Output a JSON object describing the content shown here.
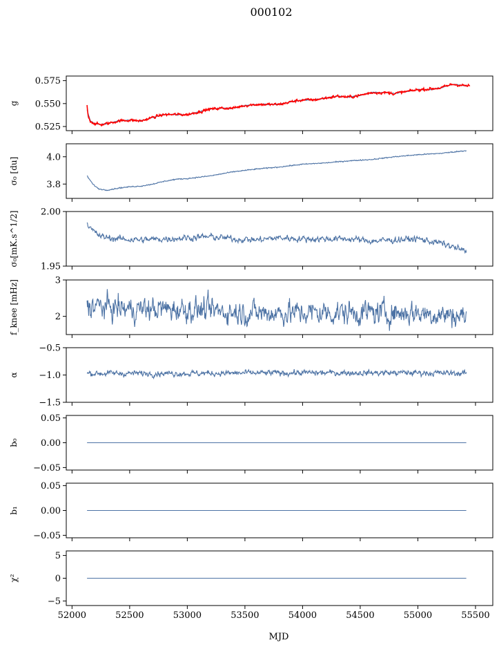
{
  "figure": {
    "title": "000102",
    "xlabel": "MJD",
    "xlim": [
      51950,
      55650
    ],
    "x_ticks": [
      52000,
      52500,
      53000,
      53500,
      54000,
      54500,
      55000,
      55500
    ],
    "colors": {
      "series": "#4c72a4",
      "overlay": "#ff0000",
      "axes": "#000000",
      "background": "#ffffff"
    }
  },
  "chart_data": [
    {
      "type": "line",
      "panel": "g",
      "ylabel": "g",
      "ylim": [
        0.5205,
        0.58
      ],
      "y_ticks": [
        0.525,
        0.55,
        0.575
      ],
      "y_tick_labels": [
        "0.525",
        "0.550",
        "0.575"
      ],
      "x_range": [
        52130,
        55450
      ],
      "series": [
        {
          "color": "#4c72a4",
          "kind": "smooth",
          "noise": 0.0006,
          "x_start": 52130,
          "x_end": 55430,
          "points": [
            [
              52130,
              0.543
            ],
            [
              52160,
              0.531
            ],
            [
              52200,
              0.528
            ],
            [
              52250,
              0.527
            ],
            [
              52300,
              0.528
            ],
            [
              52400,
              0.531
            ],
            [
              52500,
              0.532
            ],
            [
              52600,
              0.531
            ],
            [
              52700,
              0.535
            ],
            [
              52800,
              0.538
            ],
            [
              52900,
              0.538
            ],
            [
              53000,
              0.538
            ],
            [
              53100,
              0.541
            ],
            [
              53200,
              0.544
            ],
            [
              53300,
              0.545
            ],
            [
              53400,
              0.545
            ],
            [
              53500,
              0.548
            ],
            [
              53600,
              0.549
            ],
            [
              53700,
              0.549
            ],
            [
              53800,
              0.549
            ],
            [
              53900,
              0.552
            ],
            [
              54000,
              0.554
            ],
            [
              54100,
              0.554
            ],
            [
              54200,
              0.556
            ],
            [
              54300,
              0.558
            ],
            [
              54400,
              0.557
            ],
            [
              54500,
              0.559
            ],
            [
              54600,
              0.562
            ],
            [
              54700,
              0.562
            ],
            [
              54800,
              0.561
            ],
            [
              54900,
              0.563
            ],
            [
              55000,
              0.565
            ],
            [
              55100,
              0.565
            ],
            [
              55200,
              0.567
            ],
            [
              55300,
              0.571
            ],
            [
              55430,
              0.569
            ]
          ]
        },
        {
          "color": "#ff0000",
          "kind": "noisy",
          "noise": 0.0012,
          "x_start": 52130,
          "x_end": 55450,
          "points": [
            [
              52130,
              0.548
            ],
            [
              52140,
              0.536
            ],
            [
              52160,
              0.531
            ],
            [
              52200,
              0.528
            ],
            [
              52250,
              0.527
            ],
            [
              52300,
              0.528
            ],
            [
              52400,
              0.531
            ],
            [
              52500,
              0.532
            ],
            [
              52600,
              0.531
            ],
            [
              52700,
              0.535
            ],
            [
              52800,
              0.538
            ],
            [
              52900,
              0.538
            ],
            [
              53000,
              0.538
            ],
            [
              53100,
              0.541
            ],
            [
              53200,
              0.544
            ],
            [
              53300,
              0.545
            ],
            [
              53400,
              0.545
            ],
            [
              53500,
              0.548
            ],
            [
              53600,
              0.549
            ],
            [
              53700,
              0.549
            ],
            [
              53800,
              0.549
            ],
            [
              53900,
              0.552
            ],
            [
              54000,
              0.554
            ],
            [
              54100,
              0.554
            ],
            [
              54200,
              0.556
            ],
            [
              54300,
              0.558
            ],
            [
              54400,
              0.557
            ],
            [
              54500,
              0.559
            ],
            [
              54600,
              0.562
            ],
            [
              54700,
              0.562
            ],
            [
              54800,
              0.561
            ],
            [
              54900,
              0.563
            ],
            [
              55000,
              0.565
            ],
            [
              55100,
              0.566
            ],
            [
              55200,
              0.567
            ],
            [
              55300,
              0.571
            ],
            [
              55450,
              0.569
            ]
          ]
        }
      ]
    },
    {
      "type": "line",
      "panel": "sigma0-du",
      "ylabel": "σ₀ [du]",
      "ylim": [
        3.695,
        4.095
      ],
      "y_ticks": [
        3.8,
        4.0
      ],
      "y_tick_labels": [
        "3.8",
        "4.0"
      ],
      "x_range": [
        52130,
        55420
      ],
      "series": [
        {
          "color": "#4c72a4",
          "kind": "smooth",
          "noise": 0.004,
          "x_start": 52130,
          "x_end": 55420,
          "points": [
            [
              52130,
              3.86
            ],
            [
              52180,
              3.8
            ],
            [
              52230,
              3.765
            ],
            [
              52300,
              3.755
            ],
            [
              52400,
              3.77
            ],
            [
              52500,
              3.78
            ],
            [
              52600,
              3.785
            ],
            [
              52700,
              3.8
            ],
            [
              52800,
              3.82
            ],
            [
              52900,
              3.835
            ],
            [
              53000,
              3.84
            ],
            [
              53200,
              3.86
            ],
            [
              53400,
              3.89
            ],
            [
              53600,
              3.91
            ],
            [
              53800,
              3.925
            ],
            [
              54000,
              3.945
            ],
            [
              54200,
              3.955
            ],
            [
              54400,
              3.97
            ],
            [
              54600,
              3.98
            ],
            [
              54800,
              4.0
            ],
            [
              55000,
              4.015
            ],
            [
              55200,
              4.025
            ],
            [
              55420,
              4.045
            ]
          ]
        }
      ]
    },
    {
      "type": "line",
      "panel": "sigma0-mk",
      "ylabel": "σ₀[mK.s^1/2]",
      "ylim": [
        1.95,
        2.0
      ],
      "y_ticks": [
        1.95,
        2.0
      ],
      "y_tick_labels": [
        "1.95",
        "2.00"
      ],
      "x_range": [
        52130,
        55420
      ],
      "series": [
        {
          "color": "#4c72a4",
          "kind": "noisy",
          "noise": 0.0025,
          "x_start": 52130,
          "x_end": 55420,
          "points": [
            [
              52130,
              1.99
            ],
            [
              52170,
              1.983
            ],
            [
              52250,
              1.977
            ],
            [
              52400,
              1.975
            ],
            [
              52600,
              1.974
            ],
            [
              52800,
              1.975
            ],
            [
              53000,
              1.976
            ],
            [
              53200,
              1.977
            ],
            [
              53400,
              1.975
            ],
            [
              53600,
              1.974
            ],
            [
              53800,
              1.976
            ],
            [
              54000,
              1.975
            ],
            [
              54200,
              1.975
            ],
            [
              54400,
              1.975
            ],
            [
              54600,
              1.973
            ],
            [
              54800,
              1.974
            ],
            [
              55000,
              1.975
            ],
            [
              55200,
              1.971
            ],
            [
              55350,
              1.966
            ],
            [
              55420,
              1.963
            ]
          ]
        }
      ]
    },
    {
      "type": "line",
      "panel": "fknee",
      "ylabel": "f_knee [mHz]",
      "ylim": [
        1.5,
        3.0
      ],
      "y_ticks": [
        2,
        3
      ],
      "y_tick_labels": [
        "2",
        "3"
      ],
      "x_range": [
        52130,
        55420
      ],
      "series": [
        {
          "color": "#4c72a4",
          "kind": "noisy",
          "noise": 0.28,
          "x_start": 52130,
          "x_end": 55420,
          "points": [
            [
              52130,
              2.3
            ],
            [
              52500,
              2.2
            ],
            [
              53000,
              2.2
            ],
            [
              53500,
              2.1
            ],
            [
              54000,
              2.1
            ],
            [
              54500,
              2.1
            ],
            [
              55000,
              2.1
            ],
            [
              55420,
              2.0
            ]
          ]
        }
      ]
    },
    {
      "type": "line",
      "panel": "alpha",
      "ylabel": "α",
      "ylim": [
        -1.5,
        -0.5
      ],
      "y_ticks": [
        -1.5,
        -1.0,
        -0.5
      ],
      "y_tick_labels": [
        "−1.5",
        "−1.0",
        "−0.5"
      ],
      "x_range": [
        52130,
        55420
      ],
      "series": [
        {
          "color": "#4c72a4",
          "kind": "noisy",
          "noise": 0.045,
          "x_start": 52130,
          "x_end": 55420,
          "points": [
            [
              52130,
              -0.97
            ],
            [
              53000,
              -0.97
            ],
            [
              54000,
              -0.96
            ],
            [
              55000,
              -0.96
            ],
            [
              55420,
              -0.97
            ]
          ]
        }
      ]
    },
    {
      "type": "line",
      "panel": "b0",
      "ylabel": "b₀",
      "ylim": [
        -0.055,
        0.055
      ],
      "y_ticks": [
        -0.05,
        0.0,
        0.05
      ],
      "y_tick_labels": [
        "−0.05",
        "0.00",
        "0.05"
      ],
      "x_range": [
        52130,
        55420
      ],
      "series": [
        {
          "color": "#4c72a4",
          "kind": "flat",
          "noise": 0,
          "x_start": 52130,
          "x_end": 55420,
          "points": [
            [
              52130,
              0.0
            ],
            [
              55420,
              0.0
            ]
          ]
        }
      ]
    },
    {
      "type": "line",
      "panel": "b1",
      "ylabel": "b₁",
      "ylim": [
        -0.055,
        0.055
      ],
      "y_ticks": [
        -0.05,
        0.0,
        0.05
      ],
      "y_tick_labels": [
        "−0.05",
        "0.00",
        "0.05"
      ],
      "x_range": [
        52130,
        55420
      ],
      "series": [
        {
          "color": "#4c72a4",
          "kind": "flat",
          "noise": 0,
          "x_start": 52130,
          "x_end": 55420,
          "points": [
            [
              52130,
              0.0
            ],
            [
              55420,
              0.0
            ]
          ]
        }
      ]
    },
    {
      "type": "line",
      "panel": "chi2",
      "ylabel": "χ²",
      "ylim": [
        -6,
        6
      ],
      "y_ticks": [
        -5,
        0,
        5
      ],
      "y_tick_labels": [
        "−5",
        "0",
        "5"
      ],
      "x_range": [
        52130,
        55420
      ],
      "series": [
        {
          "color": "#4c72a4",
          "kind": "flat",
          "noise": 0,
          "x_start": 52130,
          "x_end": 55420,
          "points": [
            [
              52130,
              0.0
            ],
            [
              55420,
              0.0
            ]
          ]
        }
      ]
    }
  ]
}
